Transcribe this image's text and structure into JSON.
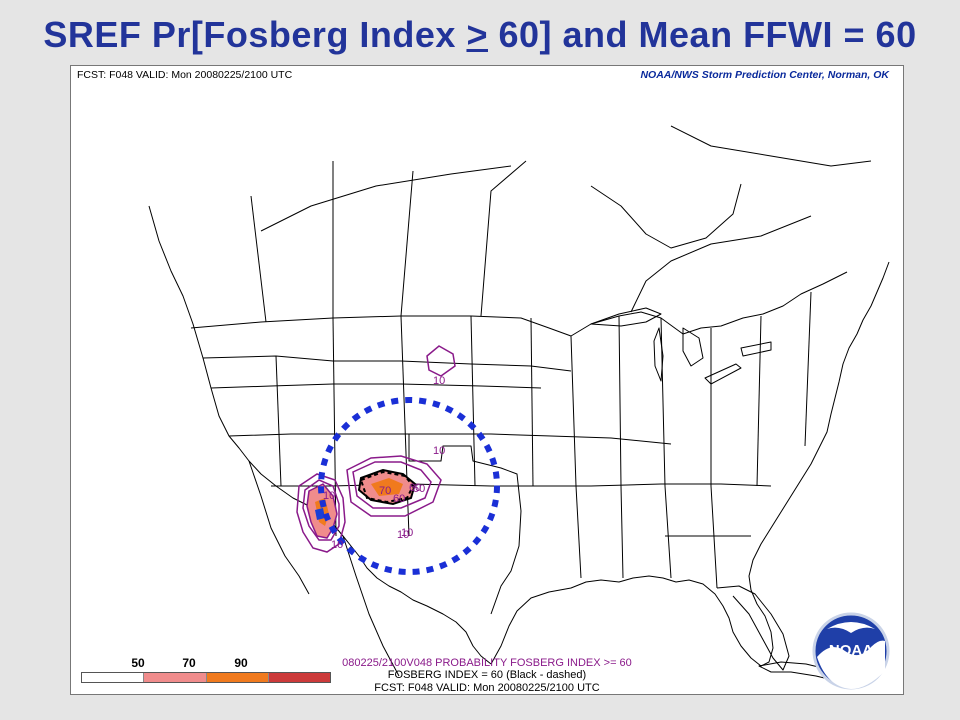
{
  "title": {
    "part1": "SREF Pr[Fosberg Index ",
    "gte": ">",
    "part2": " 60] and Mean FFWI = 60"
  },
  "header": {
    "left": "FCST: F048  VALID: Mon  20080225/2100 UTC",
    "right": "NOAA/NWS Storm Prediction Center, Norman, OK"
  },
  "contour_labels": [
    "10",
    "10",
    "10",
    "10",
    "10",
    "70",
    "60",
    "60",
    "50",
    "10"
  ],
  "colorbar": {
    "labels": [
      "50",
      "70",
      "90"
    ],
    "colors": [
      "#ffffff",
      "#f08c8c",
      "#f07a1e",
      "#cc3a3a"
    ]
  },
  "footer": {
    "line1": "080225/2100V048 PROBABILITY FOSBERG INDEX >= 60",
    "line2": "FOSBERG INDEX = 60 (Black - dashed)",
    "line3": "FCST: F048  VALID: Mon  20080225/2100 UTC"
  },
  "logo": {
    "text": "NOAA",
    "icon": "noaa-logo-icon"
  },
  "colors": {
    "title": "#22349a",
    "contour": "#8a1a8a",
    "highlight_circle": "#1a2fd6"
  }
}
